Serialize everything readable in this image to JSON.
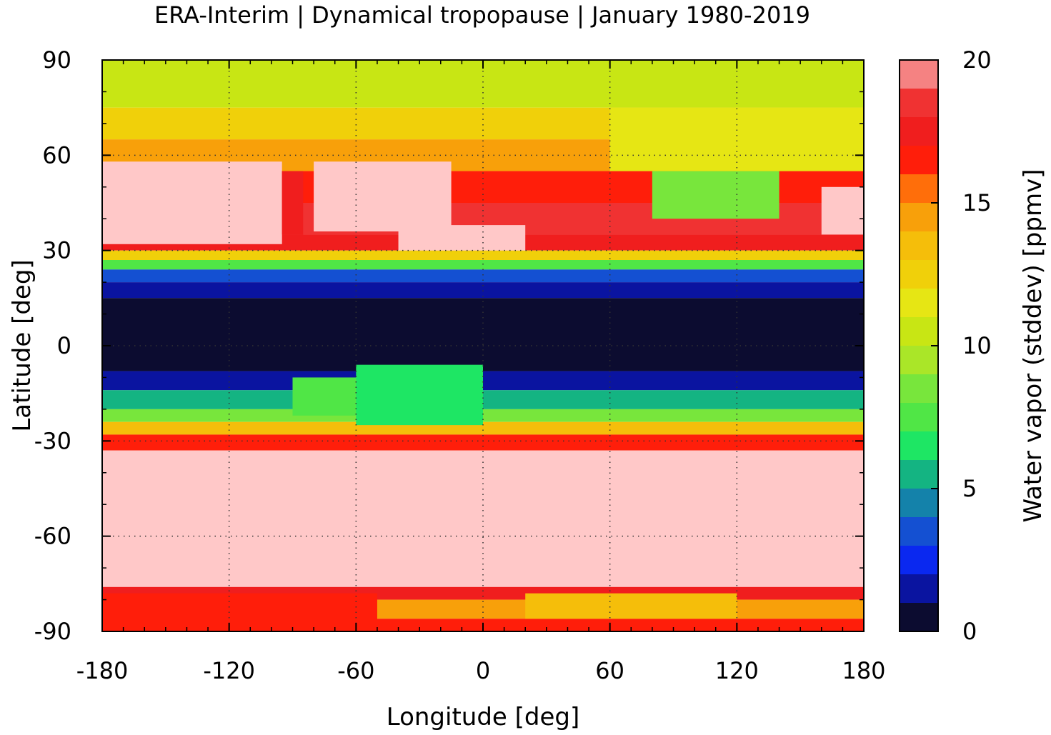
{
  "chart_data": {
    "type": "heatmap",
    "title": "ERA-Interim | Dynamical tropopause | January 1980-2019",
    "xlabel": "Longitude [deg]",
    "ylabel": "Latitude [deg]",
    "colorbar_label": "Water vapor (stddev) [ppmv]",
    "xlim": [
      -180,
      180
    ],
    "ylim": [
      -90,
      90
    ],
    "xticks": [
      "-180",
      "-120",
      "-60",
      "0",
      "60",
      "120",
      "180"
    ],
    "yticks": [
      "90",
      "60",
      "30",
      "0",
      "-30",
      "-60",
      "-90"
    ],
    "colorbar_ticks": [
      "20",
      "15",
      "10",
      "5",
      "0"
    ],
    "colorbar_range": [
      0,
      20
    ],
    "grid": true,
    "colorbar_levels": [
      {
        "from": 0,
        "to": 1,
        "color": "#0c0c30"
      },
      {
        "from": 1,
        "to": 2,
        "color": "#0a14a0"
      },
      {
        "from": 2,
        "to": 3,
        "color": "#0a28f0"
      },
      {
        "from": 3,
        "to": 4,
        "color": "#1450d2"
      },
      {
        "from": 4,
        "to": 5,
        "color": "#1482aa"
      },
      {
        "from": 5,
        "to": 6,
        "color": "#14b482"
      },
      {
        "from": 6,
        "to": 7,
        "color": "#1ee664"
      },
      {
        "from": 7,
        "to": 8,
        "color": "#50e646"
      },
      {
        "from": 8,
        "to": 9,
        "color": "#78e63c"
      },
      {
        "from": 9,
        "to": 10,
        "color": "#aae628"
      },
      {
        "from": 10,
        "to": 11,
        "color": "#c8e614"
      },
      {
        "from": 11,
        "to": 12,
        "color": "#e6e614"
      },
      {
        "from": 12,
        "to": 13,
        "color": "#f0d00a"
      },
      {
        "from": 13,
        "to": 14,
        "color": "#f5be0a"
      },
      {
        "from": 14,
        "to": 15,
        "color": "#f8a00a"
      },
      {
        "from": 15,
        "to": 16,
        "color": "#ff6e0a"
      },
      {
        "from": 16,
        "to": 17,
        "color": "#ff1e0a"
      },
      {
        "from": 17,
        "to": 18,
        "color": "#f01e1e"
      },
      {
        "from": 18,
        "to": 19,
        "color": "#f03232"
      },
      {
        "from": 19,
        "to": 20,
        "color": "#f58282"
      },
      {
        "from": 20,
        "to": 21,
        "color": "#ffc8c8"
      }
    ],
    "field": {
      "description_units": "zonal-band approximate stddev water vapor, ppmv",
      "bands": [
        {
          "lat_from": 90,
          "lat_to": 75,
          "value": 10.5
        },
        {
          "lat_from": 75,
          "lat_to": 65,
          "value": 12.5
        },
        {
          "lat_from": 65,
          "lat_to": 55,
          "value": 14
        },
        {
          "lat_from": 55,
          "lat_to": 45,
          "value": 16
        },
        {
          "lat_from": 45,
          "lat_to": 35,
          "value": 18
        },
        {
          "lat_from": 35,
          "lat_to": 30,
          "value": 17
        },
        {
          "lat_from": 30,
          "lat_to": 27,
          "value": 12
        },
        {
          "lat_from": 27,
          "lat_to": 24,
          "value": 7
        },
        {
          "lat_from": 24,
          "lat_to": 20,
          "value": 3
        },
        {
          "lat_from": 20,
          "lat_to": 15,
          "value": 1.5
        },
        {
          "lat_from": 15,
          "lat_to": -8,
          "value": 0.5
        },
        {
          "lat_from": -8,
          "lat_to": -14,
          "value": 1.5
        },
        {
          "lat_from": -14,
          "lat_to": -20,
          "value": 5
        },
        {
          "lat_from": -20,
          "lat_to": -24,
          "value": 8
        },
        {
          "lat_from": -24,
          "lat_to": -28,
          "value": 13
        },
        {
          "lat_from": -28,
          "lat_to": -33,
          "value": 16.5
        },
        {
          "lat_from": -33,
          "lat_to": -76,
          "value": 20
        },
        {
          "lat_from": -76,
          "lat_to": -80,
          "value": 17
        },
        {
          "lat_from": -80,
          "lat_to": -86,
          "value": 14.5
        },
        {
          "lat_from": -86,
          "lat_to": -90,
          "value": 16.5
        }
      ],
      "patches": [
        {
          "lon_from": -180,
          "lon_to": -95,
          "lat_from": 58,
          "lat_to": 32,
          "value": 20
        },
        {
          "lon_from": -95,
          "lon_to": -85,
          "lat_from": 55,
          "lat_to": 35,
          "value": 17
        },
        {
          "lon_from": -80,
          "lon_to": -15,
          "lat_from": 58,
          "lat_to": 36,
          "value": 20
        },
        {
          "lon_from": -40,
          "lon_to": 20,
          "lat_from": 38,
          "lat_to": 30,
          "value": 20
        },
        {
          "lon_from": 80,
          "lon_to": 140,
          "lat_from": 55,
          "lat_to": 40,
          "value": 8
        },
        {
          "lon_from": 60,
          "lon_to": 180,
          "lat_from": 75,
          "lat_to": 55,
          "value": 11
        },
        {
          "lon_from": 160,
          "lon_to": 180,
          "lat_from": 50,
          "lat_to": 35,
          "value": 20
        },
        {
          "lon_from": -90,
          "lon_to": -20,
          "lat_from": -10,
          "lat_to": -22,
          "value": 7
        },
        {
          "lon_from": -60,
          "lon_to": 0,
          "lat_from": -6,
          "lat_to": -25,
          "value": 6
        },
        {
          "lon_from": -180,
          "lon_to": -50,
          "lat_from": -78,
          "lat_to": -90,
          "value": 16.5
        },
        {
          "lon_from": 20,
          "lon_to": 120,
          "lat_from": -78,
          "lat_to": -86,
          "value": 13
        }
      ]
    }
  }
}
